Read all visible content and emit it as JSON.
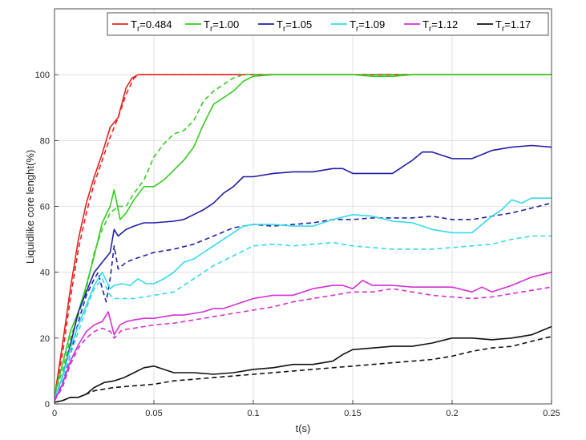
{
  "chart_data": {
    "type": "line",
    "xlabel": "t(s)",
    "ylabel": "Liquidlike core lenght(%)",
    "xlim": [
      0,
      0.25
    ],
    "ylim": [
      0,
      120
    ],
    "xticks": [
      "0",
      "0.05",
      "0.1",
      "0.15",
      "0.2",
      "0.25"
    ],
    "yticks": [
      "0",
      "20",
      "40",
      "60",
      "80",
      "100"
    ],
    "xtick_values": [
      0,
      0.05,
      0.1,
      0.15,
      0.2,
      0.25
    ],
    "ytick_values": [
      0,
      20,
      40,
      60,
      80,
      100
    ],
    "grid": true,
    "legend_position": "top-right",
    "series": [
      {
        "name": "0.484",
        "color": "#e8211e",
        "style": "solid",
        "x": [
          0,
          0.004,
          0.008,
          0.012,
          0.016,
          0.02,
          0.024,
          0.028,
          0.032,
          0.036,
          0.039,
          0.042,
          0.045,
          0.06,
          0.1,
          0.15,
          0.2,
          0.25
        ],
        "y": [
          2,
          18,
          35,
          50,
          61,
          69,
          76,
          84,
          87,
          96,
          99,
          100,
          100,
          100,
          100,
          100,
          100,
          100
        ]
      },
      {
        "name": "",
        "color": "#e8211e",
        "style": "dashed",
        "x": [
          0,
          0.004,
          0.008,
          0.012,
          0.016,
          0.02,
          0.024,
          0.028,
          0.032,
          0.036,
          0.04,
          0.043,
          0.06,
          0.1,
          0.15,
          0.2,
          0.25
        ],
        "y": [
          2,
          15,
          32,
          47,
          58,
          67,
          74,
          81,
          87,
          94,
          99,
          100,
          100,
          100,
          100,
          100,
          100
        ]
      },
      {
        "name": "1.00",
        "color": "#33cc1f",
        "style": "solid",
        "x": [
          0,
          0.004,
          0.008,
          0.012,
          0.016,
          0.02,
          0.024,
          0.028,
          0.03,
          0.033,
          0.036,
          0.04,
          0.045,
          0.05,
          0.055,
          0.06,
          0.065,
          0.07,
          0.075,
          0.08,
          0.085,
          0.09,
          0.095,
          0.1,
          0.11,
          0.15,
          0.16,
          0.17,
          0.18,
          0.19,
          0.2,
          0.25
        ],
        "y": [
          3,
          12,
          22,
          28,
          36,
          45,
          55,
          60,
          65,
          56,
          58,
          62,
          66,
          66,
          68,
          71,
          74,
          78,
          85,
          91,
          93,
          95,
          98,
          99.5,
          100,
          100,
          99.5,
          99.5,
          100,
          100,
          100,
          100
        ]
      },
      {
        "name": "",
        "color": "#33cc1f",
        "style": "dashed",
        "x": [
          0,
          0.004,
          0.008,
          0.012,
          0.016,
          0.02,
          0.024,
          0.028,
          0.032,
          0.036,
          0.04,
          0.045,
          0.05,
          0.055,
          0.06,
          0.065,
          0.07,
          0.075,
          0.08,
          0.085,
          0.09,
          0.095,
          0.1,
          0.15,
          0.2,
          0.25
        ],
        "y": [
          3,
          10,
          20,
          27,
          35,
          46,
          53,
          58,
          60,
          60,
          64,
          68,
          75,
          79,
          82,
          83,
          86,
          92,
          95,
          97,
          99,
          100,
          100,
          100,
          100,
          100
        ]
      },
      {
        "name": "1.05",
        "color": "#1f1fa5",
        "style": "solid",
        "x": [
          0,
          0.004,
          0.008,
          0.012,
          0.016,
          0.02,
          0.024,
          0.028,
          0.03,
          0.032,
          0.036,
          0.04,
          0.045,
          0.05,
          0.06,
          0.065,
          0.07,
          0.075,
          0.08,
          0.085,
          0.09,
          0.095,
          0.1,
          0.11,
          0.12,
          0.13,
          0.14,
          0.145,
          0.15,
          0.16,
          0.17,
          0.175,
          0.18,
          0.185,
          0.19,
          0.2,
          0.21,
          0.22,
          0.23,
          0.24,
          0.25
        ],
        "y": [
          2,
          8,
          18,
          28,
          34,
          40,
          43,
          46,
          53,
          51,
          53,
          54,
          55,
          55,
          55.5,
          56,
          57.5,
          59,
          61,
          64,
          66,
          69,
          69,
          70,
          70.5,
          70.5,
          71.5,
          71.5,
          70,
          70,
          70,
          72,
          74,
          76.5,
          76.5,
          74.5,
          74.5,
          77,
          78,
          78.5,
          78
        ]
      },
      {
        "name": "",
        "color": "#1f1fa5",
        "style": "dashed",
        "x": [
          0,
          0.004,
          0.008,
          0.012,
          0.016,
          0.02,
          0.022,
          0.024,
          0.026,
          0.028,
          0.03,
          0.032,
          0.036,
          0.04,
          0.045,
          0.05,
          0.06,
          0.07,
          0.08,
          0.09,
          0.1,
          0.11,
          0.12,
          0.13,
          0.14,
          0.15,
          0.16,
          0.17,
          0.18,
          0.19,
          0.2,
          0.21,
          0.22,
          0.23,
          0.24,
          0.25
        ],
        "y": [
          2,
          6,
          15,
          25,
          33,
          38,
          40,
          35,
          31,
          38,
          48,
          41,
          43,
          44,
          45,
          46,
          47,
          48.5,
          51,
          53.5,
          54.5,
          54,
          54.5,
          55,
          56,
          56,
          56.5,
          56.5,
          56.5,
          57,
          56,
          56,
          57,
          58,
          59.5,
          61
        ]
      },
      {
        "name": "1.09",
        "color": "#33d9ec",
        "style": "solid",
        "x": [
          0,
          0.004,
          0.008,
          0.012,
          0.016,
          0.02,
          0.024,
          0.028,
          0.03,
          0.034,
          0.038,
          0.042,
          0.046,
          0.05,
          0.055,
          0.06,
          0.065,
          0.07,
          0.075,
          0.08,
          0.085,
          0.09,
          0.095,
          0.1,
          0.11,
          0.12,
          0.13,
          0.14,
          0.15,
          0.16,
          0.17,
          0.18,
          0.19,
          0.2,
          0.21,
          0.22,
          0.225,
          0.23,
          0.235,
          0.24,
          0.25
        ],
        "y": [
          2,
          8,
          17,
          24,
          30,
          36,
          40,
          35,
          36,
          36.5,
          36,
          38,
          36.5,
          36.5,
          38,
          40,
          43,
          44,
          46,
          48,
          50,
          52,
          54,
          54.5,
          54.5,
          54,
          54,
          56,
          57.5,
          57,
          55.5,
          55,
          53,
          52,
          52,
          57,
          59,
          62,
          61,
          62.5,
          62.5
        ]
      },
      {
        "name": "",
        "color": "#33d9ec",
        "style": "dashed",
        "x": [
          0,
          0.004,
          0.008,
          0.012,
          0.016,
          0.02,
          0.024,
          0.028,
          0.03,
          0.035,
          0.04,
          0.045,
          0.05,
          0.055,
          0.06,
          0.065,
          0.07,
          0.075,
          0.08,
          0.09,
          0.1,
          0.11,
          0.12,
          0.13,
          0.14,
          0.15,
          0.16,
          0.17,
          0.18,
          0.19,
          0.2,
          0.21,
          0.22,
          0.23,
          0.24,
          0.25
        ],
        "y": [
          2,
          7,
          15,
          22,
          29,
          35,
          38,
          33,
          32,
          32,
          32,
          32.5,
          33,
          33.5,
          34,
          36,
          38,
          40,
          42,
          45,
          48,
          48.5,
          48,
          48.5,
          49,
          48,
          47.5,
          47,
          47,
          47,
          47.5,
          48,
          48.5,
          50,
          51,
          51
        ]
      },
      {
        "name": "1.12",
        "color": "#d42fd2",
        "style": "solid",
        "x": [
          0,
          0.004,
          0.008,
          0.012,
          0.016,
          0.02,
          0.024,
          0.027,
          0.03,
          0.033,
          0.036,
          0.04,
          0.045,
          0.05,
          0.055,
          0.06,
          0.065,
          0.07,
          0.075,
          0.08,
          0.085,
          0.09,
          0.095,
          0.1,
          0.11,
          0.12,
          0.13,
          0.14,
          0.145,
          0.15,
          0.155,
          0.16,
          0.17,
          0.18,
          0.19,
          0.2,
          0.21,
          0.215,
          0.22,
          0.23,
          0.24,
          0.25
        ],
        "y": [
          1,
          6,
          13,
          18,
          22,
          24,
          25,
          28,
          21,
          24,
          25,
          25.5,
          26,
          26,
          26.5,
          27,
          27,
          27.5,
          28,
          29,
          29,
          30,
          31,
          32,
          33,
          33,
          35,
          36,
          36,
          35,
          37.5,
          36,
          36,
          35.5,
          35.5,
          35.5,
          34,
          35.5,
          34,
          36,
          38.5,
          40
        ]
      },
      {
        "name": "",
        "color": "#d42fd2",
        "style": "dashed",
        "x": [
          0,
          0.004,
          0.008,
          0.012,
          0.016,
          0.02,
          0.024,
          0.028,
          0.03,
          0.034,
          0.04,
          0.045,
          0.05,
          0.06,
          0.07,
          0.08,
          0.09,
          0.1,
          0.11,
          0.12,
          0.13,
          0.14,
          0.15,
          0.16,
          0.17,
          0.18,
          0.19,
          0.2,
          0.21,
          0.22,
          0.23,
          0.24,
          0.25
        ],
        "y": [
          1,
          5,
          12,
          17,
          20,
          22,
          23,
          22,
          20,
          22.5,
          23,
          23.5,
          24,
          24.5,
          25.5,
          26.5,
          27.5,
          28.5,
          29.5,
          31,
          32,
          33,
          34,
          34,
          35,
          34,
          33,
          32.5,
          32,
          32.5,
          33.5,
          34.5,
          35.5
        ]
      },
      {
        "name": "1.17",
        "color": "#111111",
        "style": "solid",
        "x": [
          0,
          0.004,
          0.008,
          0.012,
          0.016,
          0.02,
          0.025,
          0.03,
          0.035,
          0.04,
          0.045,
          0.05,
          0.055,
          0.06,
          0.07,
          0.08,
          0.09,
          0.1,
          0.11,
          0.12,
          0.13,
          0.14,
          0.145,
          0.15,
          0.16,
          0.17,
          0.18,
          0.19,
          0.2,
          0.21,
          0.22,
          0.23,
          0.24,
          0.25
        ],
        "y": [
          0.5,
          1,
          2,
          2,
          3,
          5,
          6.5,
          7,
          8,
          9.5,
          11,
          11.5,
          10.5,
          9.5,
          9.5,
          9,
          9.5,
          10.5,
          11,
          12,
          12,
          13,
          15,
          16.5,
          17,
          17.5,
          17.5,
          18.5,
          20,
          20,
          19.5,
          20,
          21,
          23.5
        ]
      },
      {
        "name": "",
        "color": "#111111",
        "style": "dashed",
        "x": [
          0,
          0.004,
          0.008,
          0.012,
          0.016,
          0.02,
          0.025,
          0.03,
          0.04,
          0.05,
          0.06,
          0.07,
          0.08,
          0.09,
          0.1,
          0.11,
          0.12,
          0.13,
          0.14,
          0.15,
          0.16,
          0.17,
          0.18,
          0.19,
          0.2,
          0.21,
          0.22,
          0.23,
          0.24,
          0.25
        ],
        "y": [
          0.5,
          1,
          2,
          2,
          3,
          4,
          4.5,
          5,
          5.5,
          6,
          7,
          7.5,
          8,
          8.5,
          9,
          9.5,
          10,
          10.5,
          11,
          11.5,
          12,
          12.5,
          13,
          13.5,
          14.5,
          16,
          17,
          17.5,
          19,
          20.5
        ]
      }
    ]
  },
  "legend": {
    "prefix": "T",
    "subscript": "r",
    "entries": [
      {
        "value": "0.484",
        "color": "#e8211e"
      },
      {
        "value": "1.00",
        "color": "#33cc1f"
      },
      {
        "value": "1.05",
        "color": "#1f1fa5"
      },
      {
        "value": "1.09",
        "color": "#33d9ec"
      },
      {
        "value": "1.12",
        "color": "#d42fd2"
      },
      {
        "value": "1.17",
        "color": "#111111"
      }
    ]
  }
}
